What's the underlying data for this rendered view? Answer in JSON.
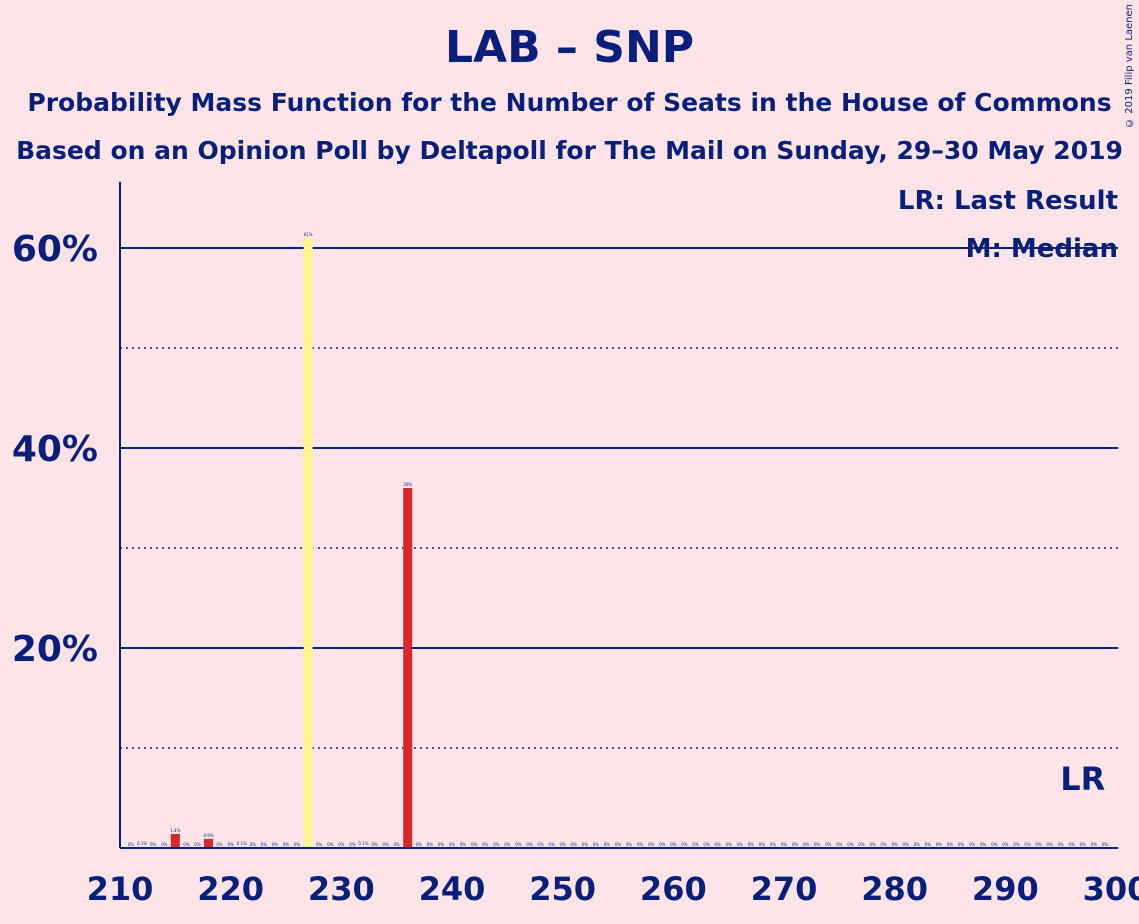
{
  "title": "LAB – SNP",
  "subtitle1": "Probability Mass Function for the Number of Seats in the House of Commons",
  "subtitle2": "Based on an Opinion Poll by Deltapoll for The Mail on Sunday, 29–30 May 2019",
  "copyright": "© 2019 Filip van Laenen",
  "legend": {
    "last_result": "LR: Last Result",
    "median": "M: Median",
    "lr_marker": "LR"
  },
  "colors": {
    "background": "#fde4e8",
    "axis": "#0a1f7a",
    "median_bar": "#fff68f",
    "bar": "#d8282a"
  },
  "chart_data": {
    "type": "bar",
    "title": "LAB – SNP",
    "xlabel": "",
    "ylabel": "",
    "xlim": [
      210,
      300
    ],
    "ylim": [
      0,
      66
    ],
    "y_ticks": [
      {
        "value": 20,
        "label": "20%"
      },
      {
        "value": 40,
        "label": "40%"
      },
      {
        "value": 60,
        "label": "60%"
      }
    ],
    "y_minor": [
      10,
      30,
      50
    ],
    "x_ticks": [
      210,
      220,
      230,
      240,
      250,
      260,
      270,
      280,
      290,
      300
    ],
    "median": 227,
    "last_result": 297,
    "bars": [
      {
        "x": 212,
        "value": 0.1,
        "label": "0.1%",
        "median": false
      },
      {
        "x": 215,
        "value": 1.4,
        "label": "1.4%",
        "median": false
      },
      {
        "x": 218,
        "value": 0.9,
        "label": "0.9%",
        "median": false
      },
      {
        "x": 221,
        "value": 0.1,
        "label": "0.1%",
        "median": false
      },
      {
        "x": 227,
        "value": 61,
        "label": "61%",
        "median": true
      },
      {
        "x": 232,
        "value": 0.1,
        "label": "0.1%",
        "median": false
      },
      {
        "x": 236,
        "value": 36,
        "label": "36%",
        "median": false
      }
    ],
    "zero_label": "0%"
  }
}
